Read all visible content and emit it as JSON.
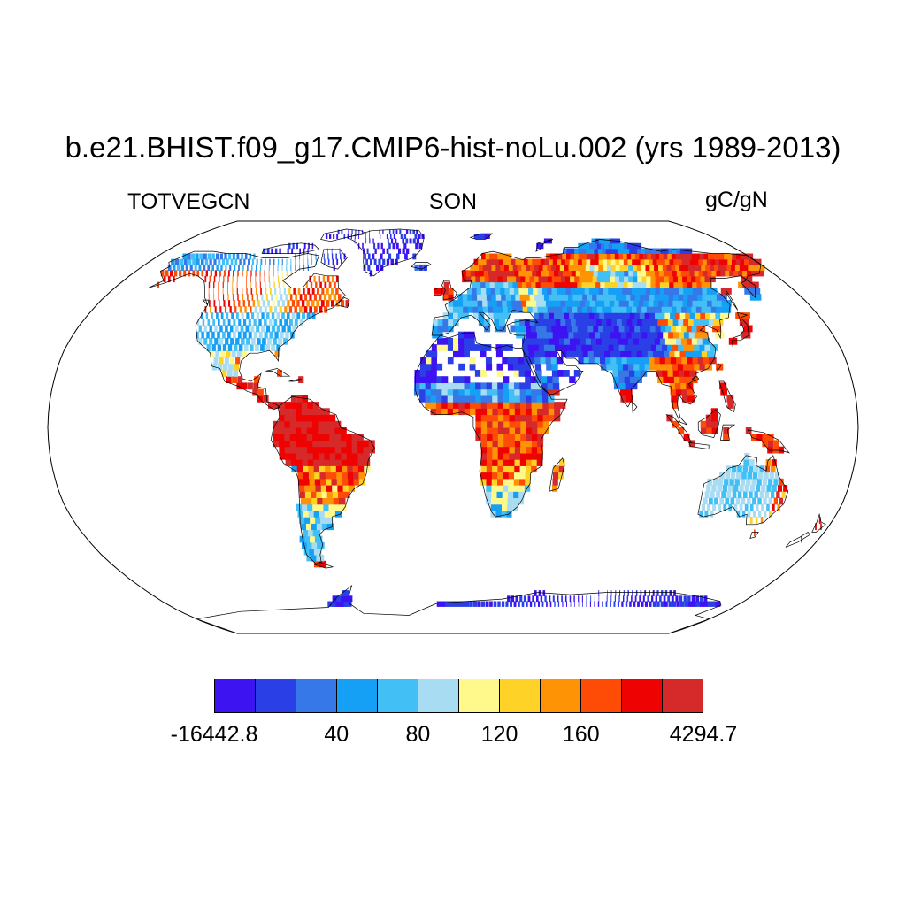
{
  "title": "b.e21.BHIST.f09_g17.CMIP6-hist-noLu.002 (yrs 1989-2013)",
  "left_label": "TOTVEGCN",
  "center_label": "SON",
  "right_label": "gC/gN",
  "colorbar": {
    "colors": [
      "#3d13f2",
      "#2a40e6",
      "#3678e8",
      "#16a0f5",
      "#42bff5",
      "#a8dcf2",
      "#fef98a",
      "#fed226",
      "#fe9306",
      "#fe4b06",
      "#ee0202",
      "#d62a2a"
    ],
    "tick_labels": [
      {
        "text": "-16442.8",
        "boundary": 0
      },
      {
        "text": "40",
        "boundary": 3
      },
      {
        "text": "80",
        "boundary": 5
      },
      {
        "text": "120",
        "boundary": 7
      },
      {
        "text": "160",
        "boundary": 9
      },
      {
        "text": "4294.7",
        "boundary": 12
      }
    ]
  },
  "map": {
    "projection": "Robinson",
    "ocean_color": "#ffffff",
    "missing_color": "#ffffff"
  }
}
